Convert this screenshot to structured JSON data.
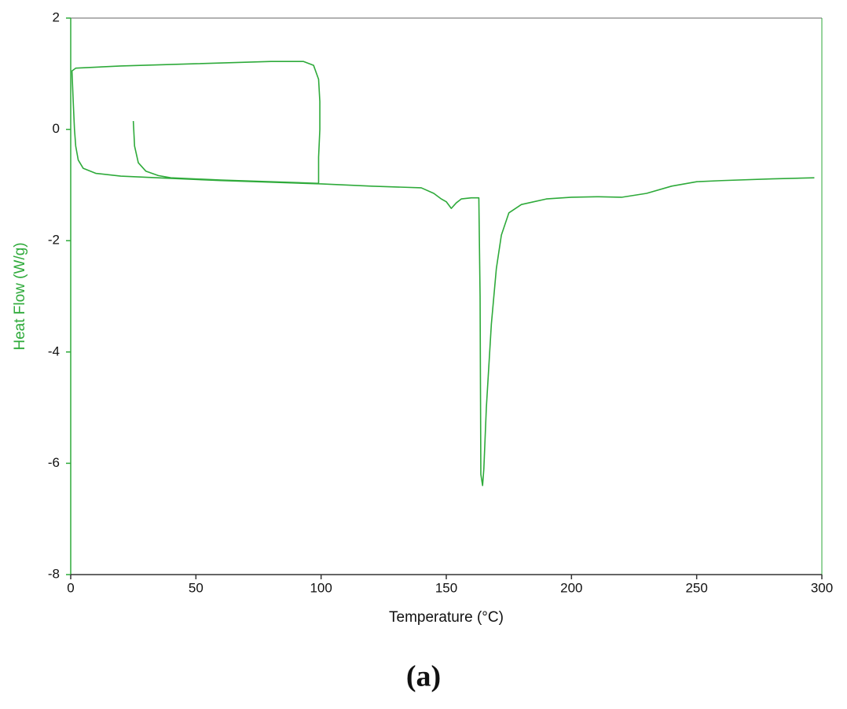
{
  "chart_data": {
    "type": "line",
    "xlabel": "Temperature (°C)",
    "ylabel": "Heat Flow (W/g)",
    "xlim": [
      0,
      300
    ],
    "ylim": [
      -8,
      2
    ],
    "xticks": [
      0,
      50,
      100,
      150,
      200,
      250,
      300
    ],
    "yticks": [
      2,
      0,
      -2,
      -4,
      -6,
      -8
    ],
    "color": "#2eaa3a",
    "x": [
      25,
      25.5,
      27,
      30,
      35,
      40,
      60,
      80,
      99,
      99,
      99.5,
      99.5,
      99,
      97,
      93,
      80,
      50,
      20,
      2,
      0.5,
      1,
      1.5,
      2,
      3,
      5,
      10,
      20,
      40,
      60,
      80,
      100,
      120,
      140,
      145,
      148,
      150,
      152,
      154,
      156,
      160,
      163,
      163.5,
      163.8,
      164.5,
      165,
      166,
      168,
      170,
      172,
      175,
      180,
      190,
      200,
      210,
      220,
      230,
      240,
      250,
      260,
      280,
      297
    ],
    "values": [
      0.15,
      -0.3,
      -0.6,
      -0.75,
      -0.83,
      -0.87,
      -0.91,
      -0.94,
      -0.97,
      -0.5,
      0,
      0.5,
      0.9,
      1.15,
      1.22,
      1.22,
      1.18,
      1.14,
      1.1,
      1.05,
      0.5,
      0,
      -0.3,
      -0.55,
      -0.7,
      -0.79,
      -0.84,
      -0.88,
      -0.92,
      -0.95,
      -0.98,
      -1.02,
      -1.05,
      -1.15,
      -1.25,
      -1.3,
      -1.42,
      -1.32,
      -1.25,
      -1.23,
      -1.23,
      -3,
      -6.2,
      -6.4,
      -6.1,
      -5,
      -3.5,
      -2.5,
      -1.9,
      -1.5,
      -1.35,
      -1.25,
      -1.22,
      -1.21,
      -1.22,
      -1.15,
      -1.02,
      -0.94,
      -0.92,
      -0.89,
      -0.87
    ]
  },
  "caption": "(a)"
}
